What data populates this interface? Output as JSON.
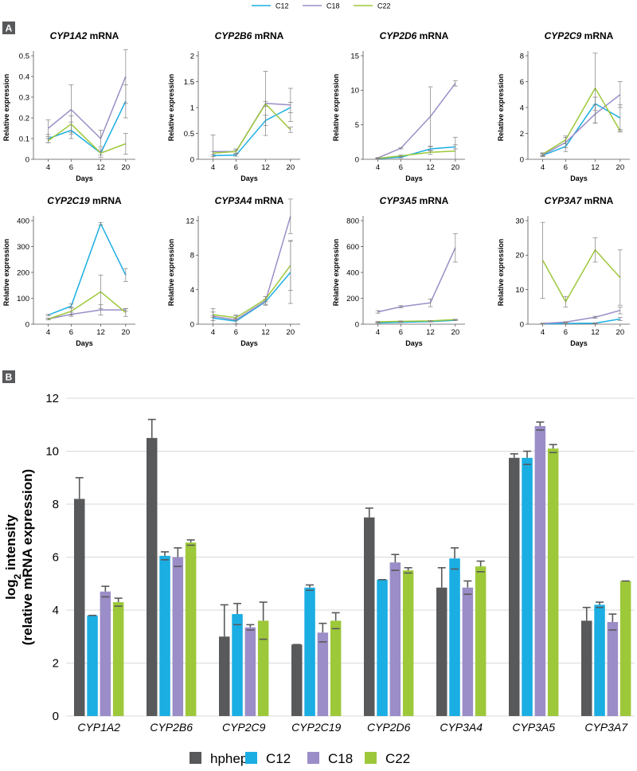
{
  "colors": {
    "hphep": "#58595b",
    "C12": "#1aaee3",
    "C18": "#9b8dc7",
    "C22": "#9dc83a",
    "err": "#7f7f7f",
    "errB": "#58595b",
    "grid": "#d9d9d9",
    "axis": "#555555",
    "panel_bg": "#58595b"
  },
  "top_legend": [
    "C12",
    "C18",
    "C22"
  ],
  "panel_labels": {
    "a": "A",
    "b": "B"
  },
  "chart_data": [
    {
      "type": "line",
      "title_gene": "CYP1A2",
      "title_suffix": " mRNA",
      "xlabel": "Days",
      "ylabel": "Relative expression",
      "x": [
        "4",
        "6",
        "12",
        "20"
      ],
      "ylim": [
        0,
        0.5
      ],
      "yticks": [
        0,
        0.1,
        0.2,
        0.3,
        0.4,
        0.5
      ],
      "series": [
        {
          "name": "C12",
          "values": [
            0.1,
            0.14,
            0.03,
            0.28
          ],
          "err": [
            0.02,
            0.04,
            0.02,
            0.08
          ]
        },
        {
          "name": "C18",
          "values": [
            0.15,
            0.24,
            0.1,
            0.4
          ],
          "err": [
            0.04,
            0.12,
            0.04,
            0.13
          ]
        },
        {
          "name": "C22",
          "values": [
            0.09,
            0.17,
            0.03,
            0.075
          ],
          "err": [
            0.01,
            0.04,
            0.01,
            0.05
          ]
        }
      ]
    },
    {
      "type": "line",
      "title_gene": "CYP2B6",
      "title_suffix": " mRNA",
      "xlabel": "Days",
      "ylabel": "Relative expression",
      "x": [
        "4",
        "6",
        "12",
        "20"
      ],
      "ylim": [
        0,
        2.0
      ],
      "yticks": [
        0,
        0.5,
        1.0,
        1.5,
        2.0
      ],
      "series": [
        {
          "name": "C12",
          "values": [
            0.07,
            0.08,
            0.75,
            1.0
          ],
          "err": [
            0.02,
            0.02,
            0.1,
            0.1
          ]
        },
        {
          "name": "C18",
          "values": [
            0.15,
            0.15,
            1.08,
            1.05
          ],
          "err": [
            0.32,
            0.05,
            0.62,
            0.32
          ]
        },
        {
          "name": "C22",
          "values": [
            0.12,
            0.15,
            1.07,
            0.57
          ],
          "err": [
            0.03,
            0.03,
            0.05,
            0.05
          ]
        }
      ]
    },
    {
      "type": "line",
      "title_gene": "CYP2D6",
      "title_suffix": " mRNA",
      "xlabel": "Days",
      "ylabel": "Relative expression",
      "x": [
        "4",
        "6",
        "12",
        "20"
      ],
      "ylim": [
        0,
        15
      ],
      "yticks": [
        0,
        5,
        10,
        15
      ],
      "series": [
        {
          "name": "C12",
          "values": [
            0.1,
            0.3,
            1.5,
            1.8
          ],
          "err": [
            0.1,
            0.1,
            0.3,
            0.3
          ]
        },
        {
          "name": "C18",
          "values": [
            0.2,
            1.6,
            6.2,
            11.0
          ],
          "err": [
            0.05,
            0.1,
            4.3,
            0.4
          ]
        },
        {
          "name": "C22",
          "values": [
            0.15,
            0.5,
            1.0,
            1.2
          ],
          "err": [
            0.05,
            0.1,
            0.3,
            2.0
          ]
        }
      ]
    },
    {
      "type": "line",
      "title_gene": "CYP2C9",
      "title_suffix": " mRNA",
      "xlabel": "Days",
      "ylabel": "Relative expression",
      "x": [
        "4",
        "6",
        "12",
        "20"
      ],
      "ylim": [
        0,
        8
      ],
      "yticks": [
        0,
        2,
        4,
        6,
        8
      ],
      "series": [
        {
          "name": "C12",
          "values": [
            0.3,
            1.0,
            4.3,
            3.2
          ],
          "err": [
            0.1,
            0.4,
            0.5,
            1.0
          ]
        },
        {
          "name": "C18",
          "values": [
            0.35,
            1.3,
            3.5,
            5.0
          ],
          "err": [
            0.1,
            0.4,
            0.7,
            1.0
          ]
        },
        {
          "name": "C22",
          "values": [
            0.4,
            1.5,
            5.5,
            2.2
          ],
          "err": [
            0.1,
            0.3,
            2.7,
            0.1
          ]
        }
      ]
    },
    {
      "type": "line",
      "title_gene": "CYP2C19",
      "title_suffix": " mRNA",
      "xlabel": "Days",
      "ylabel": "Relative expression",
      "x": [
        "4",
        "6",
        "12",
        "20"
      ],
      "ylim": [
        0,
        400
      ],
      "yticks": [
        0,
        100,
        200,
        300,
        400
      ],
      "series": [
        {
          "name": "C12",
          "values": [
            35,
            70,
            388,
            190
          ],
          "err": [
            3,
            8,
            5,
            25
          ]
        },
        {
          "name": "C18",
          "values": [
            20,
            38,
            55,
            55
          ],
          "err": [
            3,
            8,
            20,
            5
          ]
        },
        {
          "name": "C22",
          "values": [
            20,
            50,
            125,
            45
          ],
          "err": [
            3,
            15,
            65,
            15
          ]
        }
      ]
    },
    {
      "type": "line",
      "title_gene": "CYP3A4",
      "title_suffix": " mRNA",
      "xlabel": "Days",
      "ylabel": "Relative expression",
      "x": [
        "4",
        "6",
        "12",
        "20"
      ],
      "ylim": [
        0,
        12
      ],
      "yticks": [
        0,
        4,
        8,
        12
      ],
      "series": [
        {
          "name": "C12",
          "values": [
            0.7,
            0.35,
            2.6,
            6.0
          ],
          "err": [
            0.3,
            0.3,
            0.3,
            3.6
          ]
        },
        {
          "name": "C18",
          "values": [
            0.9,
            0.5,
            2.7,
            12.5
          ],
          "err": [
            0.9,
            0.5,
            0.5,
            2.0
          ]
        },
        {
          "name": "C22",
          "values": [
            1.1,
            0.75,
            2.9,
            6.8
          ],
          "err": [
            0.3,
            0.3,
            0.3,
            2.9
          ]
        }
      ]
    },
    {
      "type": "line",
      "title_gene": "CYP3A5",
      "title_suffix": " mRNA",
      "xlabel": "Days",
      "ylabel": "Relative expression",
      "x": [
        "4",
        "6",
        "12",
        "20"
      ],
      "ylim": [
        0,
        800
      ],
      "yticks": [
        0,
        200,
        400,
        600,
        800
      ],
      "series": [
        {
          "name": "C12",
          "values": [
            10,
            15,
            20,
            30
          ],
          "err": [
            3,
            3,
            3,
            3
          ]
        },
        {
          "name": "C18",
          "values": [
            95,
            135,
            165,
            590
          ],
          "err": [
            10,
            8,
            30,
            110
          ]
        },
        {
          "name": "C22",
          "values": [
            18,
            22,
            25,
            35
          ],
          "err": [
            3,
            3,
            3,
            3
          ]
        }
      ]
    },
    {
      "type": "line",
      "title_gene": "CYP3A7",
      "title_suffix": " mRNA",
      "xlabel": "Days",
      "ylabel": "Relative expression",
      "x": [
        "4",
        "6",
        "12",
        "20"
      ],
      "ylim": [
        0,
        30
      ],
      "yticks": [
        0,
        10,
        20,
        30
      ],
      "series": [
        {
          "name": "C12",
          "values": [
            0.1,
            0.2,
            0.3,
            1.5
          ],
          "err": [
            0.1,
            0.1,
            0.1,
            0.5
          ]
        },
        {
          "name": "C18",
          "values": [
            0.2,
            0.6,
            2.0,
            4.0
          ],
          "err": [
            0.1,
            0.1,
            0.3,
            1.0
          ]
        },
        {
          "name": "C22",
          "values": [
            18.5,
            6.5,
            21.5,
            13.5
          ],
          "err": [
            11,
            1.5,
            3.5,
            8.0
          ]
        }
      ]
    },
    {
      "type": "bar",
      "title": "",
      "xlabel": "",
      "ylabel_line1": "log",
      "ylabel_sub": "2",
      "ylabel_rest": " intensity",
      "ylabel_line2": "(relative mRNA expression)",
      "categories": [
        "CYP1A2",
        "CYP2B6",
        "CYP2C9",
        "CYP2C19",
        "CYP2D6",
        "CYP3A4",
        "CYP3A5",
        "CYP3A7"
      ],
      "ylim": [
        0,
        12
      ],
      "yticks": [
        0,
        2,
        4,
        6,
        8,
        10,
        12
      ],
      "series": [
        {
          "name": "hphep",
          "values": [
            8.2,
            10.5,
            3.0,
            2.7,
            7.5,
            4.85,
            9.75,
            3.6
          ],
          "err": [
            0.8,
            0.7,
            1.2,
            0.0,
            0.35,
            0.75,
            0.15,
            0.5
          ]
        },
        {
          "name": "C12",
          "values": [
            3.8,
            6.05,
            3.85,
            4.85,
            5.15,
            5.95,
            9.75,
            4.2
          ],
          "err": [
            0.0,
            0.15,
            0.4,
            0.1,
            0.0,
            0.4,
            0.25,
            0.1
          ]
        },
        {
          "name": "C18",
          "values": [
            4.7,
            6.0,
            3.35,
            3.15,
            5.8,
            4.85,
            10.95,
            3.55
          ],
          "err": [
            0.2,
            0.35,
            0.1,
            0.35,
            0.3,
            0.25,
            0.15,
            0.3
          ]
        },
        {
          "name": "C22",
          "values": [
            4.3,
            6.55,
            3.6,
            3.6,
            5.5,
            5.65,
            10.1,
            5.1
          ],
          "err": [
            0.15,
            0.1,
            0.7,
            0.3,
            0.1,
            0.2,
            0.15,
            0.0
          ]
        }
      ],
      "legend": [
        "hphep",
        "C12",
        "C18",
        "C22"
      ]
    }
  ]
}
